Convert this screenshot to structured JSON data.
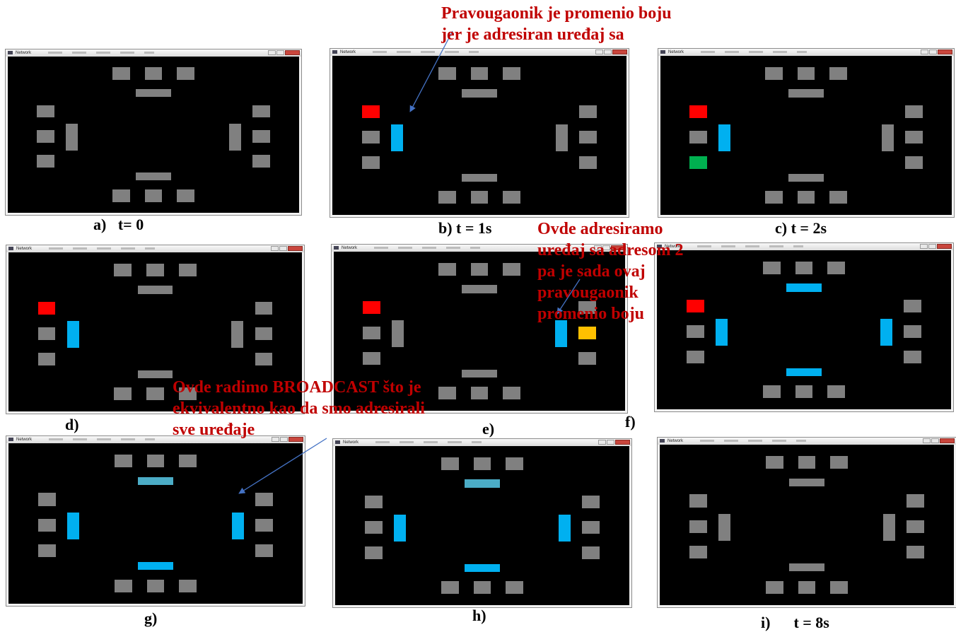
{
  "window_title": "Network",
  "panels": [
    {
      "id": "a",
      "caption": "a)   t= 0",
      "hl": {}
    },
    {
      "id": "b",
      "caption": "b) t = 1s",
      "hl": {
        "l0": "red",
        "lv": "blue"
      }
    },
    {
      "id": "c",
      "caption": "c) t = 2s",
      "hl": {
        "l0": "red",
        "lv": "blue",
        "l2": "green"
      }
    },
    {
      "id": "d",
      "caption": "d)",
      "hl": {
        "l0": "red",
        "lv": "blue"
      }
    },
    {
      "id": "e",
      "caption": "e)",
      "hl": {
        "l0": "red",
        "rv": "blue",
        "r1": "yellow"
      }
    },
    {
      "id": "f",
      "caption": "f)",
      "hl": {
        "l0": "red",
        "lv": "blue",
        "rv": "blue",
        "th": "blue",
        "bh": "blue"
      }
    },
    {
      "id": "g",
      "caption": "g)",
      "hl": {
        "lv": "blue",
        "rv": "blue",
        "th": "teal",
        "bh": "blue"
      }
    },
    {
      "id": "h",
      "caption": "h)",
      "hl": {
        "lv": "blue",
        "rv": "blue",
        "th": "teal",
        "bh": "blue"
      }
    },
    {
      "id": "i",
      "caption": "i)      t = 8s",
      "hl": {}
    }
  ],
  "annotations": {
    "top": "Pravougaonik je promenio boju\njer je adresiran uređaj sa",
    "middle": "Ovde adresiramo\nuređaj sa adresom 2\npa je sada ovaj\npravougaonik\npromenio boju",
    "bottom": "Ovde radimo BROADCAST što je\nekvivalentno kao da smo adresirali\nsve uređaje"
  },
  "colors": {
    "background": "#000000",
    "inactive": "#808080",
    "red": "#ff0000",
    "green": "#00b050",
    "blue": "#00b0f0",
    "teal": "#4bacc6",
    "yellow": "#ffc000",
    "annotation_text": "#c00000",
    "arrow": "#4472c4"
  }
}
